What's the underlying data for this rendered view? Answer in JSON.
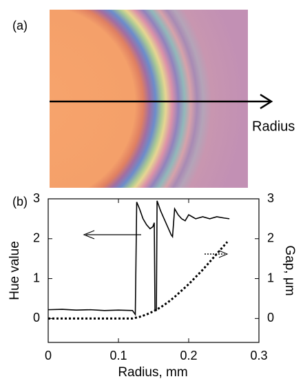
{
  "chart_data": {
    "type": "line",
    "annotations": [
      "(a)",
      "Radius",
      "(b)"
    ],
    "xlabel": "Radius, mm",
    "ylabel": "Hue value",
    "y2label": "Gap, μm",
    "xlim": [
      0,
      0.3
    ],
    "xticks": [
      0,
      0.1,
      0.2,
      0.3
    ],
    "ylim": [
      -0.6,
      3
    ],
    "yticks": [
      0,
      1,
      2,
      3
    ],
    "y2lim": [
      -0.6,
      3
    ],
    "y2ticks": [
      0,
      1,
      2,
      3
    ],
    "series": [
      {
        "color": "#000000",
        "style": "solid",
        "x": [
          0,
          0.02,
          0.04,
          0.06,
          0.08,
          0.1,
          0.12,
          0.124,
          0.126,
          0.13,
          0.135,
          0.14,
          0.145,
          0.149,
          0.151,
          0.152,
          0.154,
          0.155,
          0.16,
          0.165,
          0.17,
          0.175,
          0.177,
          0.18,
          0.185,
          0.19,
          0.195,
          0.2,
          0.205,
          0.21,
          0.22,
          0.23,
          0.24,
          0.25,
          0.258
        ],
        "values": [
          0.22,
          0.23,
          0.21,
          0.22,
          0.2,
          0.21,
          0.2,
          0.1,
          2.92,
          2.75,
          2.5,
          2.35,
          2.25,
          2.3,
          2.4,
          0.2,
          0.2,
          2.95,
          2.7,
          2.5,
          2.3,
          2.1,
          2.05,
          2.75,
          2.6,
          2.5,
          2.45,
          2.6,
          2.55,
          2.5,
          2.55,
          2.5,
          2.55,
          2.52,
          2.5
        ]
      },
      {
        "color": "#000000",
        "style": "dotted",
        "axis": "y2",
        "x": [
          0,
          0.05,
          0.1,
          0.12,
          0.13,
          0.14,
          0.15,
          0.16,
          0.17,
          0.18,
          0.19,
          0.2,
          0.21,
          0.22,
          0.23,
          0.24,
          0.25,
          0.255
        ],
        "values": [
          0,
          0,
          0,
          0,
          0.04,
          0.1,
          0.18,
          0.28,
          0.4,
          0.54,
          0.7,
          0.86,
          1.04,
          1.22,
          1.42,
          1.62,
          1.82,
          1.92
        ]
      }
    ]
  }
}
